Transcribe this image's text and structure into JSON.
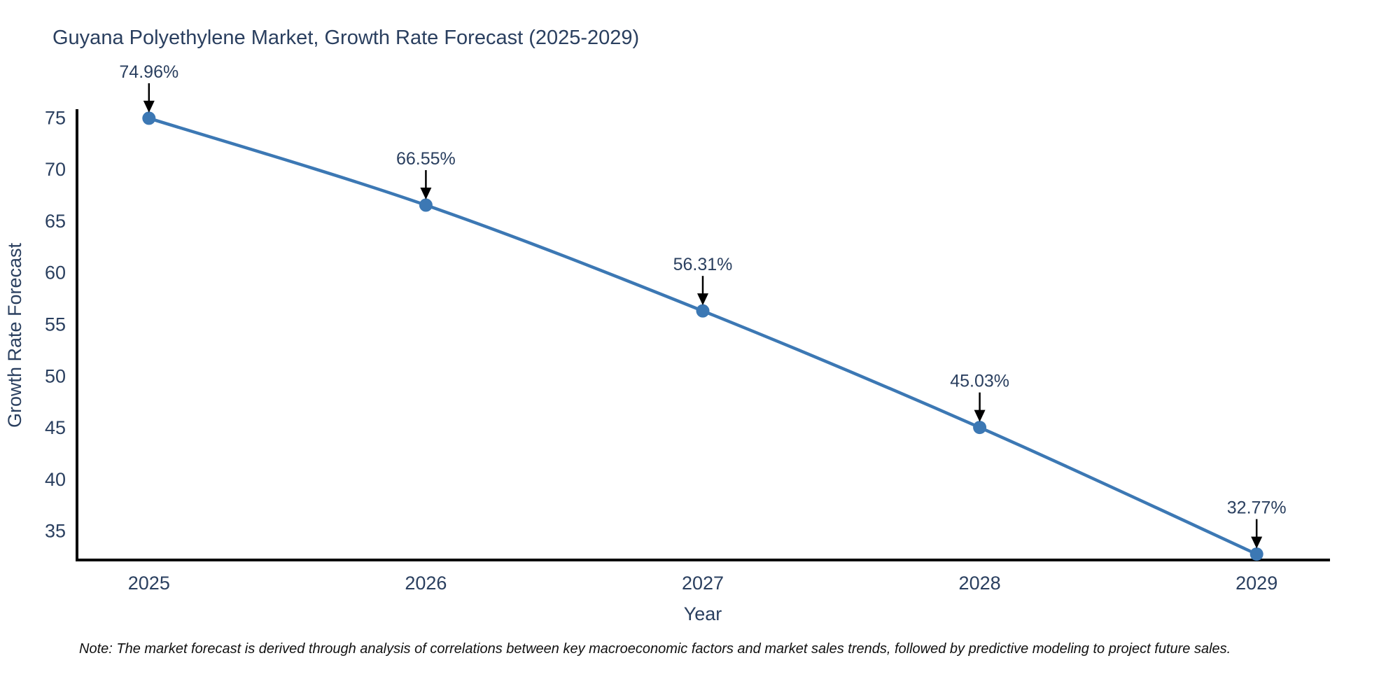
{
  "note": "Note: The market forecast is derived through analysis of correlations between key macroeconomic factors and market sales trends, followed by predictive modeling to project future sales.",
  "chart_data": {
    "type": "line",
    "title": "Guyana Polyethylene Market, Growth Rate Forecast (2025-2029)",
    "x": [
      "2025",
      "2026",
      "2027",
      "2028",
      "2029"
    ],
    "series": [
      {
        "name": "Growth Rate Forecast",
        "values": [
          74.96,
          66.55,
          56.31,
          45.03,
          32.77
        ]
      }
    ],
    "data_labels": [
      "74.96%",
      "66.55%",
      "56.31%",
      "45.03%",
      "32.77%"
    ],
    "xlabel": "Year",
    "ylabel": "Growth Rate Forecast",
    "y_ticks": [
      35,
      40,
      45,
      50,
      55,
      60,
      65,
      70,
      75
    ],
    "ylim": [
      32.2,
      75.7
    ],
    "grid": false,
    "legend_position": "none",
    "colors": {
      "line": "#3c78b4",
      "marker": "#3c78b4",
      "axis": "#000000",
      "text": "#2a3f5f",
      "annotation_text": "#2a3f5f",
      "annotation_arrow": "#000000"
    }
  }
}
